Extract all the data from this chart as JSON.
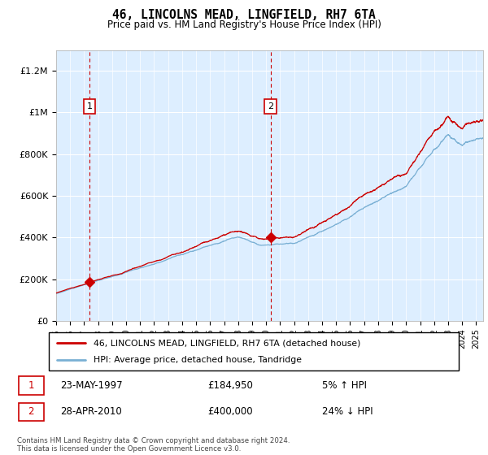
{
  "title": "46, LINCOLNS MEAD, LINGFIELD, RH7 6TA",
  "subtitle": "Price paid vs. HM Land Registry's House Price Index (HPI)",
  "legend_line1": "46, LINCOLNS MEAD, LINGFIELD, RH7 6TA (detached house)",
  "legend_line2": "HPI: Average price, detached house, Tandridge",
  "annotation1_label": "1",
  "annotation1_date": "23-MAY-1997",
  "annotation1_price": "£184,950",
  "annotation1_hpi": "5% ↑ HPI",
  "annotation2_label": "2",
  "annotation2_date": "28-APR-2010",
  "annotation2_price": "£400,000",
  "annotation2_hpi": "24% ↓ HPI",
  "footnote": "Contains HM Land Registry data © Crown copyright and database right 2024.\nThis data is licensed under the Open Government Licence v3.0.",
  "price_color": "#cc0000",
  "hpi_color": "#7ab0d4",
  "vline_color": "#cc0000",
  "annotation_box_color": "#cc0000",
  "background_color": "#ddeeff",
  "ylim": [
    0,
    1300000
  ],
  "yticks": [
    0,
    200000,
    400000,
    600000,
    800000,
    1000000,
    1200000
  ],
  "ytick_labels": [
    "£0",
    "£200K",
    "£400K",
    "£600K",
    "£800K",
    "£1M",
    "£1.2M"
  ],
  "sale1_x": 1997.38,
  "sale1_y": 184950,
  "sale2_x": 2010.32,
  "sale2_y": 400000,
  "xmin": 1995,
  "xmax": 2025.5,
  "n_points": 3660
}
